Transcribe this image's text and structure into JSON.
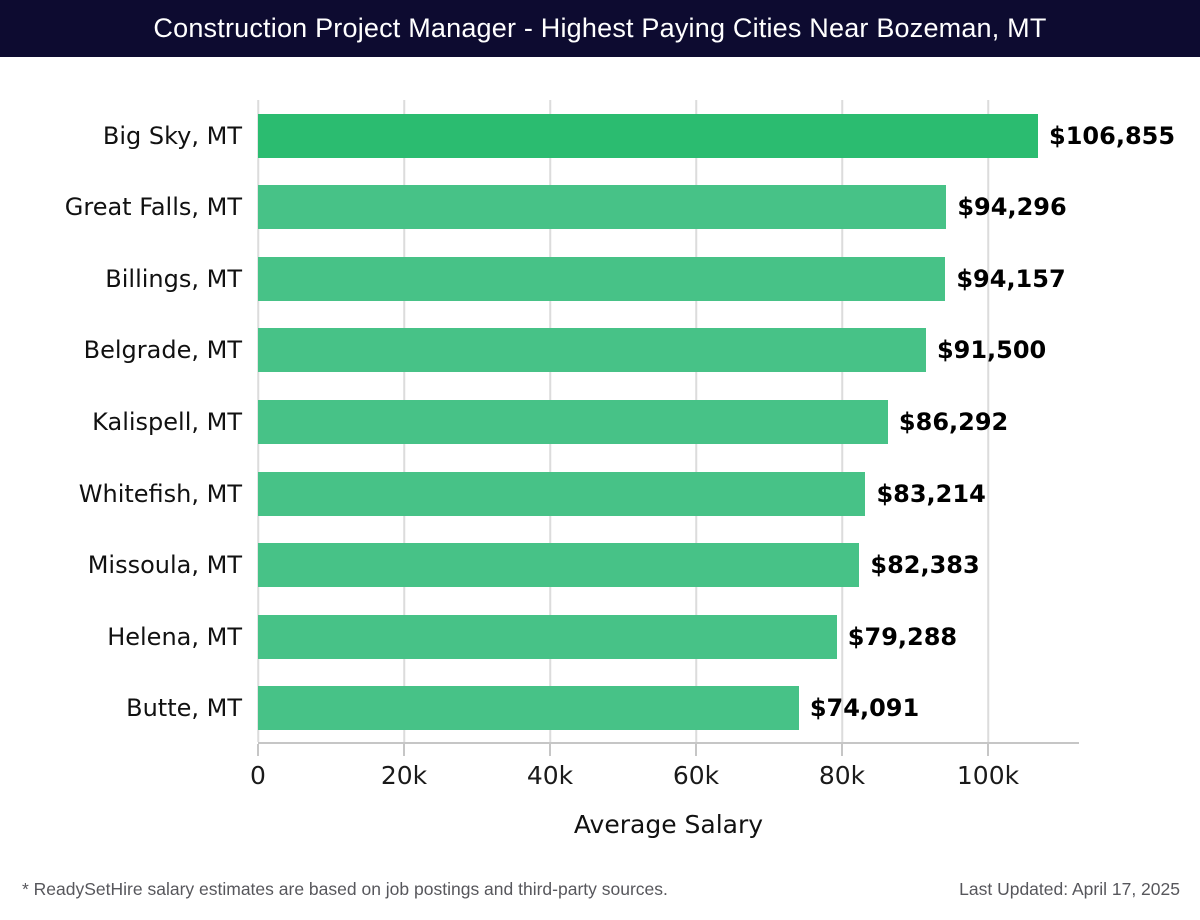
{
  "header": {
    "title": "Construction Project Manager - Highest Paying Cities Near Bozeman, MT",
    "bg_color": "#0d0b30",
    "text_color": "#ffffff"
  },
  "chart_data": {
    "type": "bar",
    "orientation": "horizontal",
    "title": "Construction Project Manager - Highest Paying Cities Near Bozeman, MT",
    "categories": [
      "Big Sky, MT",
      "Great Falls, MT",
      "Billings, MT",
      "Belgrade, MT",
      "Kalispell, MT",
      "Whitefish, MT",
      "Missoula, MT",
      "Helena, MT",
      "Butte, MT"
    ],
    "values": [
      106855,
      94296,
      94157,
      91500,
      86292,
      83214,
      82383,
      79288,
      74091
    ],
    "value_labels": [
      "$106,855",
      "$94,296",
      "$94,157",
      "$91,500",
      "$86,292",
      "$83,214",
      "$82,383",
      "$79,288",
      "$74,091"
    ],
    "xlabel": "Average Salary",
    "xlim": [
      0,
      112300
    ],
    "x_ticks": [
      {
        "value": 0,
        "label": "0"
      },
      {
        "value": 20000,
        "label": "20k"
      },
      {
        "value": 40000,
        "label": "40k"
      },
      {
        "value": 60000,
        "label": "60k"
      },
      {
        "value": 80000,
        "label": "80k"
      },
      {
        "value": 100000,
        "label": "100k"
      }
    ],
    "grid": "vertical",
    "legend": "none",
    "colors": {
      "bar_highlight": "#2bbc70",
      "bar_default": "#47c287",
      "gridline": "#dcdcdc",
      "axis_line": "#c6c6c6"
    }
  },
  "footer": {
    "note": "* ReadySetHire salary estimates are based on job postings and third-party sources.",
    "last_updated": "Last Updated: April 17, 2025"
  }
}
